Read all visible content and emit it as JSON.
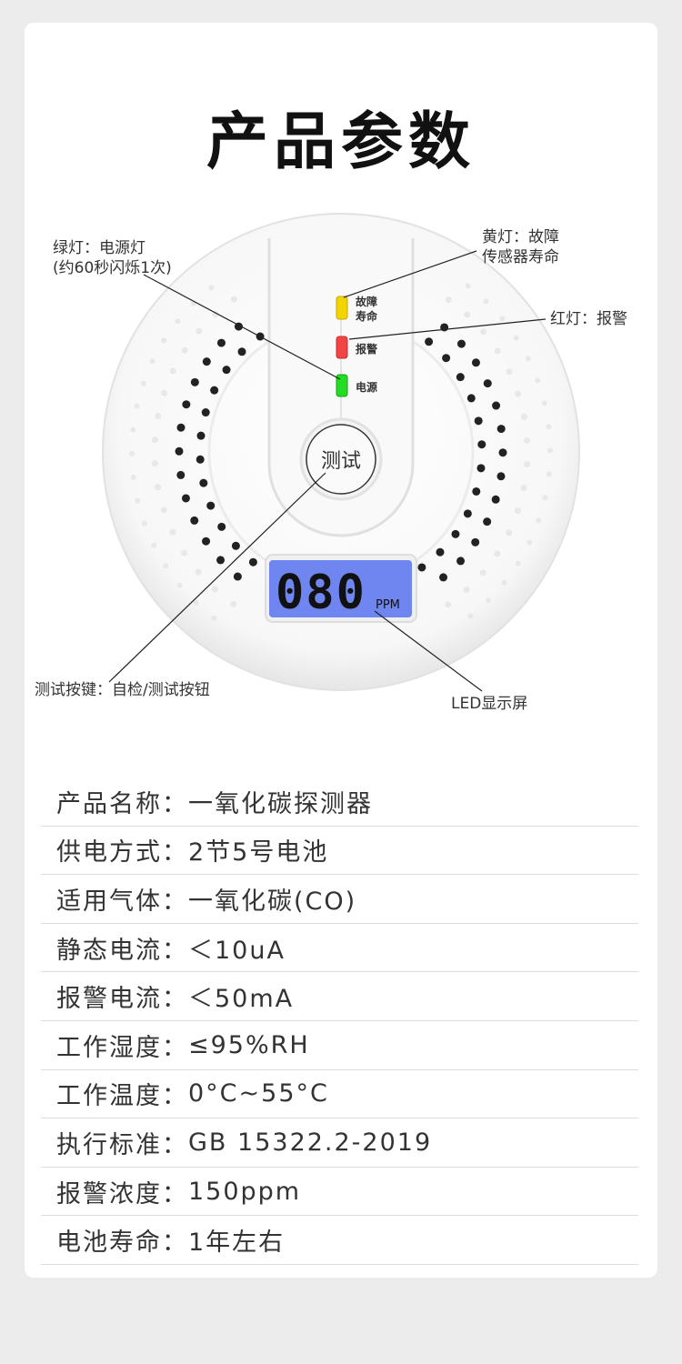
{
  "title": "产品参数",
  "device": {
    "led_labels": {
      "fault_line1": "故障",
      "fault_line2": "寿命",
      "alarm": "报警",
      "power": "电源"
    },
    "test_button": "测试",
    "lcd": {
      "digits": "080",
      "unit": "PPM"
    },
    "colors": {
      "yellow": "#f2d400",
      "red": "#f04545",
      "green": "#22dd22",
      "lcd": "#6f86f0"
    }
  },
  "callouts": {
    "green": [
      "绿灯：电源灯",
      "(约60秒闪烁1次)"
    ],
    "yellow": [
      "黄灯：故障",
      "传感器寿命"
    ],
    "red": "红灯：报警",
    "test": "测试按键：自检/测试按钮",
    "lcd": "LED显示屏"
  },
  "specs": [
    {
      "label": "产品名称：",
      "value": "一氧化碳探测器"
    },
    {
      "label": "供电方式：",
      "value": "2节5号电池"
    },
    {
      "label": "适用气体：",
      "value": "一氧化碳(CO)"
    },
    {
      "label": "静态电流：",
      "value": "＜10uA"
    },
    {
      "label": "报警电流：",
      "value": "＜50mA"
    },
    {
      "label": "工作湿度：",
      "value": "≤95%RH"
    },
    {
      "label": "工作温度：",
      "value": "0°C~55°C"
    },
    {
      "label": "执行标准：",
      "value": "GB 15322.2-2019"
    },
    {
      "label": "报警浓度：",
      "value": "150ppm"
    },
    {
      "label": "电池寿命：",
      "value": "1年左右"
    }
  ]
}
